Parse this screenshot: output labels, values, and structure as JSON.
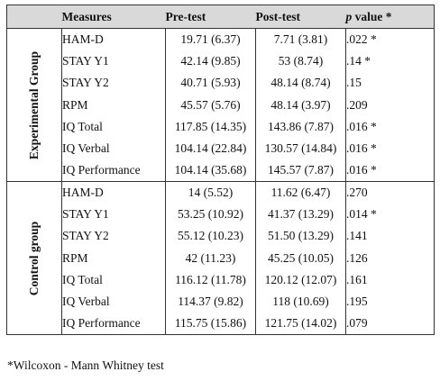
{
  "header": {
    "measures": "Measures",
    "pre_test": "Pre-test",
    "post_test": "Post-test",
    "p_value_italic": "p",
    "p_value_rest": " value *"
  },
  "groups": [
    {
      "label": "Experimental Group",
      "rows": [
        {
          "measure": "HAM-D",
          "pre": "19.71 (6.37)",
          "post": "7.71 (3.81)",
          "p": ".022 *"
        },
        {
          "measure": "STAY Y1",
          "pre": "42.14 (9.85)",
          "post": "53 (8.74)",
          "p": ".14 *"
        },
        {
          "measure": "STAY Y2",
          "pre": "40.71 (5.93)",
          "post": "48.14 (8.74)",
          "p": ".15"
        },
        {
          "measure": "RPM",
          "pre": "45.57 (5.76)",
          "post": "48.14 (3.97)",
          "p": ".209"
        },
        {
          "measure": "IQ Total",
          "pre": "117.85 (14.35)",
          "post": "143.86 (7.87)",
          "p": ".016 *"
        },
        {
          "measure": "IQ Verbal",
          "pre": "104.14 (22.84)",
          "post": "130.57 (14.84)",
          "p": ".016 *"
        },
        {
          "measure": "IQ Performance",
          "pre": "104.14 (35.68)",
          "post": "145.57 (7.87)",
          "p": ".016 *"
        }
      ]
    },
    {
      "label": "Control group",
      "rows": [
        {
          "measure": "HAM-D",
          "pre": "14 (5.52)",
          "post": "11.62 (6.47)",
          "p": ".270"
        },
        {
          "measure": "STAY Y1",
          "pre": "53.25 (10.92)",
          "post": "41.37 (13.29)",
          "p": ".014 *"
        },
        {
          "measure": "STAY Y2",
          "pre": "55.12 (10.23)",
          "post": "51.50 (13.29)",
          "p": ".141"
        },
        {
          "measure": "RPM",
          "pre": "42 (11.23)",
          "post": "45.25 (10.05)",
          "p": ".126"
        },
        {
          "measure": "IQ Total",
          "pre": "116.12 (11.78)",
          "post": "120.12 (12.07)",
          "p": ".161"
        },
        {
          "measure": "IQ Verbal",
          "pre": "114.37 (9.82)",
          "post": "118 (10.69)",
          "p": ".195"
        },
        {
          "measure": "IQ Performance",
          "pre": "115.75 (15.86)",
          "post": "121.75 (14.02)",
          "p": ".079"
        }
      ]
    }
  ],
  "footnote": "*Wilcoxon - Mann Whitney test"
}
